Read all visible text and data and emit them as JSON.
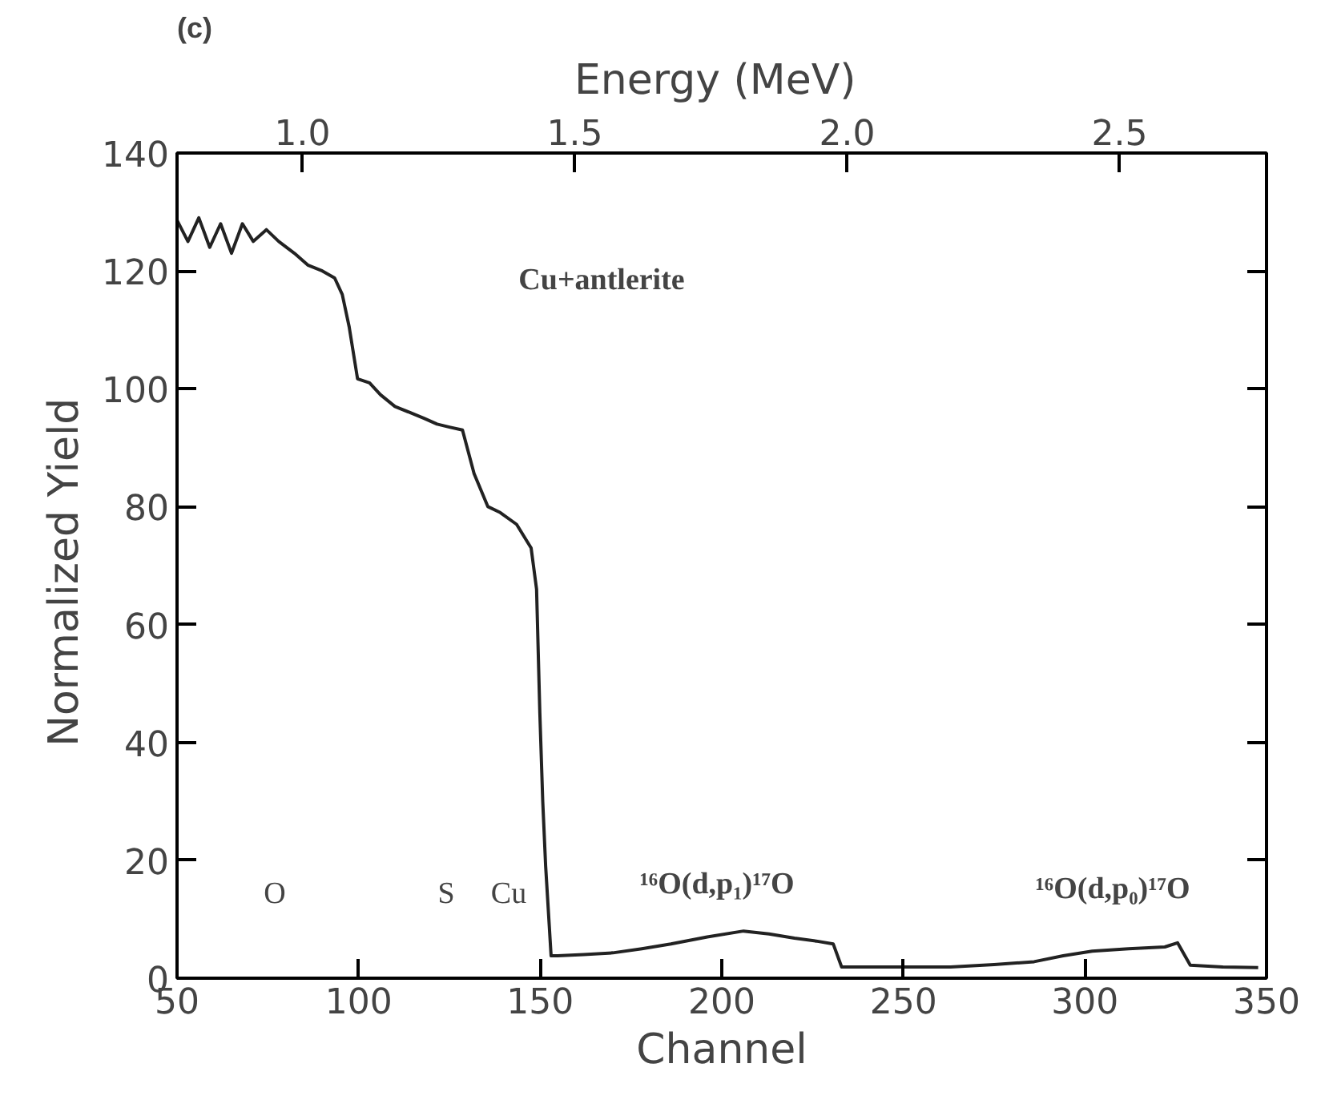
{
  "chart_data": {
    "type": "line",
    "title": "(c)",
    "xlabel": "Channel",
    "ylabel": "Normalized  Yield",
    "x2label": "Energy  (MeV)",
    "xlim": [
      50,
      350
    ],
    "xticks": [
      50,
      100,
      150,
      200,
      250,
      300,
      350
    ],
    "ylim": [
      0,
      140
    ],
    "yticks": [
      0,
      20,
      40,
      60,
      80,
      100,
      120,
      140
    ],
    "x2lim": [
      0.77,
      2.77
    ],
    "x2ticks": [
      {
        "value": 1,
        "label": "1.0"
      },
      1.5,
      {
        "value": 2,
        "label": "2.0"
      },
      2.5
    ],
    "grid": false,
    "marker": "none",
    "line_style": "solid",
    "series": [
      {
        "color": "#222222",
        "x": [
          50,
          53,
          56,
          59,
          62,
          65,
          68,
          71,
          74.6,
          78,
          82.3,
          86,
          90,
          93.4,
          95.5,
          97.4,
          99.7,
          103,
          106,
          110,
          114,
          118,
          121.6,
          125,
          128.6,
          131.8,
          135.6,
          139,
          143.5,
          147.5,
          149,
          149.9,
          150.7,
          151.5,
          153,
          154.8,
          162,
          170,
          178,
          186,
          196,
          206,
          213,
          220,
          226,
          230.7,
          233,
          245,
          263,
          275,
          286,
          294,
          302,
          312,
          322,
          325.5,
          329,
          338,
          347.7
        ],
        "values": [
          128.6,
          125,
          129,
          124,
          128,
          123,
          128,
          125,
          127,
          125,
          123,
          121,
          120,
          118.8,
          116,
          110.5,
          101.7,
          101,
          99,
          97,
          96,
          95,
          94,
          93.5,
          93,
          85.6,
          80,
          79,
          77,
          73,
          66,
          45,
          30,
          19,
          3.8,
          3.8,
          4,
          4.3,
          5,
          5.8,
          7,
          8,
          7.5,
          6.8,
          6.3,
          5.8,
          1.9,
          1.9,
          1.9,
          2.3,
          2.8,
          3.8,
          4.6,
          5,
          5.3,
          6,
          2.2,
          1.9,
          1.8
        ]
      }
    ],
    "annotations": [
      "Cu+antlerite",
      "O",
      "S",
      "Cu",
      "¹⁶O(d,p₁)¹⁷O",
      "¹⁶O(d,p₀)¹⁷O"
    ]
  }
}
